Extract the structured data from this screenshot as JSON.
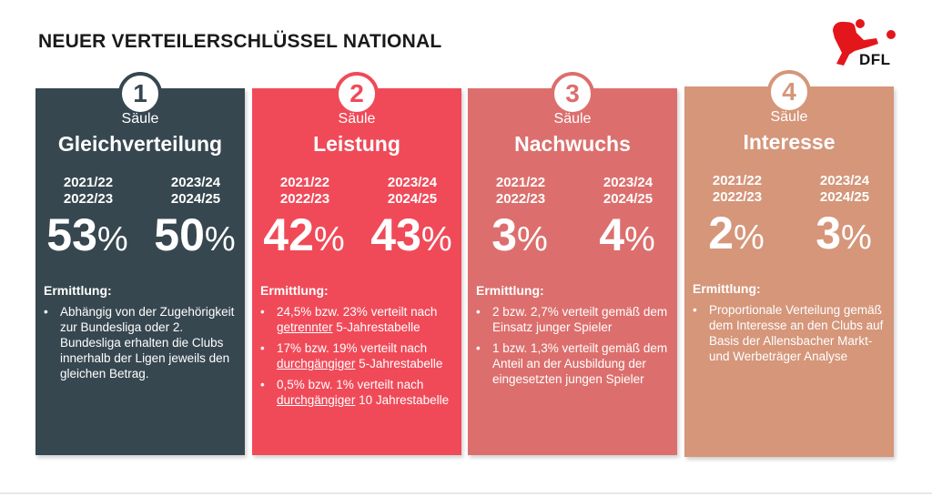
{
  "title": "NEUER VERTEILERSCHLÜSSEL NATIONAL",
  "logo": {
    "text": "DFL",
    "icon": "dfl-logo-icon",
    "color": "#e3161c"
  },
  "colors": {
    "card1": "#374750",
    "card2": "#f04a59",
    "card3": "#dc6f6d",
    "card4": "#d5967a"
  },
  "cards": [
    {
      "number": "1",
      "saeule": "Säule",
      "name": "Gleichverteilung",
      "season_left": [
        "2021/22",
        "2022/23"
      ],
      "season_right": [
        "2023/24",
        "2024/25"
      ],
      "pct_left": "53",
      "pct_right": "50",
      "sign": "%",
      "ermittlung": "Ermittlung:",
      "bullets": [
        {
          "text": "Abhängig von der Zugehörigkeit zur Bundesliga oder 2. Bundesliga erhalten die Clubs innerhalb der Ligen jeweils den gleichen Betrag."
        }
      ]
    },
    {
      "number": "2",
      "saeule": "Säule",
      "name": "Leistung",
      "season_left": [
        "2021/22",
        "2022/23"
      ],
      "season_right": [
        "2023/24",
        "2024/25"
      ],
      "pct_left": "42",
      "pct_right": "43",
      "sign": "%",
      "ermittlung": "Ermittlung:",
      "bullets": [
        {
          "pre": "24,5% bzw. 23% verteilt nach ",
          "u": "getrennter",
          "post": " 5-Jahrestabelle"
        },
        {
          "pre": "17% bzw. 19% verteilt nach ",
          "u": "durchgängiger",
          "post": " 5-Jahrestabelle"
        },
        {
          "pre": "0,5% bzw. 1% verteilt nach ",
          "u": "durchgängiger",
          "post": " 10 Jahrestabelle"
        }
      ]
    },
    {
      "number": "3",
      "saeule": "Säule",
      "name": "Nachwuchs",
      "season_left": [
        "2021/22",
        "2022/23"
      ],
      "season_right": [
        "2023/24",
        "2024/25"
      ],
      "pct_left": "3",
      "pct_right": "4",
      "sign": "%",
      "ermittlung": "Ermittlung:",
      "bullets": [
        {
          "text": "2 bzw. 2,7% verteilt gemäß dem Einsatz junger Spieler"
        },
        {
          "text": "1 bzw. 1,3% verteilt gemäß dem Anteil an der Ausbildung der eingesetzten jungen Spieler"
        }
      ]
    },
    {
      "number": "4",
      "saeule": "Säule",
      "name": "Interesse",
      "season_left": [
        "2021/22",
        "2022/23"
      ],
      "season_right": [
        "2023/24",
        "2024/25"
      ],
      "pct_left": "2",
      "pct_right": "3",
      "sign": "%",
      "ermittlung": "Ermittlung:",
      "bullets": [
        {
          "text": "Proportionale Verteilung gemäß dem Interesse an den Clubs auf Basis der Allensbacher Markt- und Werbeträger Analyse"
        }
      ]
    }
  ]
}
